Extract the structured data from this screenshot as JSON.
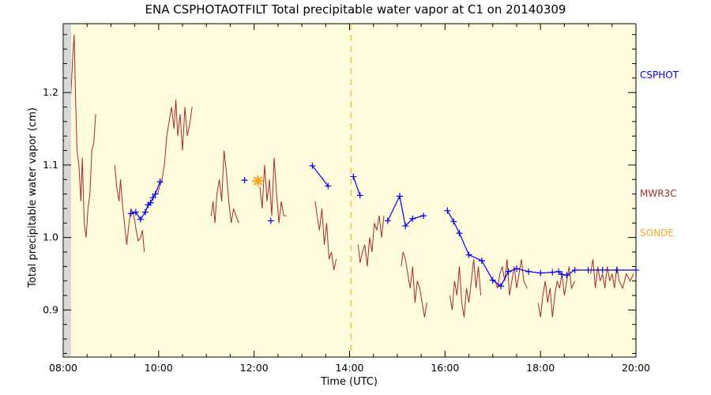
{
  "chart_data": {
    "type": "line",
    "title": "ENA CSPHOTAOTFILT Total precipitable water vapor at C1 on 20140309",
    "xlabel": "Time (UTC)",
    "ylabel": "Total precipitable water vapor (cm)",
    "xlim_hours": [
      8,
      20
    ],
    "ylim": [
      0.835,
      1.295
    ],
    "x_ticks": [
      {
        "value": 8,
        "label": "08:00"
      },
      {
        "value": 10,
        "label": "10:00"
      },
      {
        "value": 12,
        "label": "12:00"
      },
      {
        "value": 14,
        "label": "14:00"
      },
      {
        "value": 16,
        "label": "16:00"
      },
      {
        "value": 18,
        "label": "18:00"
      },
      {
        "value": 20,
        "label": "20:00"
      }
    ],
    "y_ticks": [
      {
        "value": 0.9,
        "label": "0.9"
      },
      {
        "value": 1.0,
        "label": "1.0"
      },
      {
        "value": 1.1,
        "label": "1.1"
      },
      {
        "value": 1.2,
        "label": "1.2"
      }
    ],
    "background_color": "#fdfbdc",
    "grid": false,
    "vertical_reference_line": {
      "x_hours": 14.03,
      "color": "#f5c242",
      "style": "dashed"
    },
    "legend_placement": "right",
    "series": [
      {
        "name": "CSPHOT",
        "color": "#0000ee",
        "marker": "plus",
        "segments": [
          [
            [
              9.42,
              1.033
            ],
            [
              9.52,
              1.035
            ],
            [
              9.62,
              1.025
            ],
            [
              9.72,
              1.035
            ],
            [
              9.78,
              1.045
            ],
            [
              9.83,
              1.048
            ],
            [
              9.88,
              1.055
            ],
            [
              9.93,
              1.06
            ],
            [
              10.03,
              1.077
            ]
          ],
          [
            [
              11.8,
              1.079
            ]
          ],
          [
            [
              12.35,
              1.023
            ]
          ],
          [
            [
              13.22,
              1.099
            ],
            [
              13.55,
              1.071
            ]
          ],
          [
            [
              14.08,
              1.084
            ],
            [
              14.22,
              1.058
            ]
          ],
          [
            [
              14.8,
              1.023
            ],
            [
              15.05,
              1.057
            ],
            [
              15.17,
              1.016
            ],
            [
              15.32,
              1.026
            ],
            [
              15.55,
              1.03
            ]
          ],
          [
            [
              16.05,
              1.037
            ],
            [
              16.18,
              1.022
            ],
            [
              16.3,
              1.006
            ],
            [
              16.5,
              0.976
            ],
            [
              16.77,
              0.968
            ],
            [
              17.0,
              0.941
            ],
            [
              17.17,
              0.933
            ],
            [
              17.33,
              0.953
            ],
            [
              17.5,
              0.957
            ],
            [
              17.75,
              0.953
            ],
            [
              18.0,
              0.951
            ],
            [
              18.25,
              0.952
            ],
            [
              18.38,
              0.953
            ],
            [
              18.45,
              0.949
            ],
            [
              18.55,
              0.948
            ],
            [
              18.72,
              0.955
            ],
            [
              19.0,
              0.955
            ],
            [
              19.3,
              0.955
            ],
            [
              19.6,
              0.955
            ],
            [
              20.0,
              0.955
            ]
          ]
        ]
      },
      {
        "name": "MWR3C",
        "color": "#a52a2a",
        "marker": "none",
        "segments": [
          [
            [
              8.0,
              1.13
            ],
            [
              8.04,
              1.14
            ],
            [
              8.08,
              1.17
            ],
            [
              8.12,
              1.15
            ],
            [
              8.17,
              1.21
            ],
            [
              8.2,
              1.25
            ],
            [
              8.23,
              1.28
            ],
            [
              8.26,
              1.19
            ],
            [
              8.29,
              1.12
            ],
            [
              8.33,
              1.1
            ],
            [
              8.37,
              1.05
            ],
            [
              8.4,
              1.11
            ],
            [
              8.44,
              1.02
            ],
            [
              8.48,
              1.0
            ],
            [
              8.52,
              1.04
            ],
            [
              8.56,
              1.06
            ],
            [
              8.6,
              1.12
            ],
            [
              8.64,
              1.13
            ],
            [
              8.68,
              1.17
            ]
          ],
          [
            [
              9.08,
              1.1
            ],
            [
              9.12,
              1.07
            ],
            [
              9.17,
              1.05
            ],
            [
              9.2,
              1.08
            ],
            [
              9.25,
              1.04
            ],
            [
              9.3,
              1.01
            ],
            [
              9.33,
              0.99
            ],
            [
              9.38,
              1.02
            ],
            [
              9.42,
              1.04
            ],
            [
              9.48,
              1.03
            ],
            [
              9.53,
              1.01
            ],
            [
              9.57,
              0.995
            ],
            [
              9.62,
              1.0
            ],
            [
              9.66,
              1.01
            ],
            [
              9.7,
              0.98
            ]
          ],
          [
            [
              9.98,
              1.06
            ],
            [
              10.02,
              1.07
            ],
            [
              10.07,
              1.08
            ],
            [
              10.12,
              1.1
            ],
            [
              10.17,
              1.14
            ],
            [
              10.22,
              1.16
            ],
            [
              10.27,
              1.18
            ],
            [
              10.32,
              1.15
            ],
            [
              10.36,
              1.19
            ],
            [
              10.4,
              1.14
            ],
            [
              10.45,
              1.17
            ],
            [
              10.5,
              1.12
            ],
            [
              10.55,
              1.18
            ],
            [
              10.6,
              1.14
            ],
            [
              10.66,
              1.16
            ],
            [
              10.7,
              1.18
            ]
          ],
          [
            [
              11.1,
              1.03
            ],
            [
              11.14,
              1.05
            ],
            [
              11.18,
              1.02
            ],
            [
              11.22,
              1.06
            ],
            [
              11.27,
              1.08
            ],
            [
              11.32,
              1.05
            ],
            [
              11.37,
              1.12
            ],
            [
              11.42,
              1.09
            ],
            [
              11.47,
              1.05
            ],
            [
              11.52,
              1.02
            ],
            [
              11.57,
              1.04
            ],
            [
              11.62,
              1.03
            ],
            [
              11.68,
              1.02
            ]
          ],
          [
            [
              12.12,
              1.07
            ],
            [
              12.17,
              1.04
            ],
            [
              12.22,
              1.1
            ],
            [
              12.27,
              1.05
            ],
            [
              12.32,
              1.08
            ],
            [
              12.37,
              1.03
            ],
            [
              12.42,
              1.11
            ],
            [
              12.47,
              1.06
            ],
            [
              12.52,
              1.02
            ],
            [
              12.57,
              1.05
            ],
            [
              12.62,
              1.03
            ],
            [
              12.68,
              1.03
            ]
          ],
          [
            [
              13.28,
              1.05
            ],
            [
              13.32,
              1.03
            ],
            [
              13.37,
              1.01
            ],
            [
              13.42,
              1.04
            ],
            [
              13.47,
              0.99
            ],
            [
              13.52,
              1.02
            ],
            [
              13.57,
              0.97
            ],
            [
              13.62,
              0.98
            ],
            [
              13.67,
              0.955
            ],
            [
              13.72,
              0.97
            ]
          ],
          [
            [
              14.18,
              0.99
            ],
            [
              14.22,
              0.965
            ],
            [
              14.27,
              0.98
            ],
            [
              14.32,
              0.99
            ],
            [
              14.37,
              0.96
            ],
            [
              14.42,
              1.0
            ],
            [
              14.47,
              0.98
            ],
            [
              14.52,
              1.02
            ],
            [
              14.57,
              1.01
            ],
            [
              14.62,
              1.03
            ],
            [
              14.67,
              1.0
            ],
            [
              14.72,
              1.03
            ]
          ],
          [
            [
              15.08,
              0.96
            ],
            [
              15.12,
              0.98
            ],
            [
              15.17,
              0.97
            ],
            [
              15.22,
              0.95
            ],
            [
              15.27,
              0.93
            ],
            [
              15.32,
              0.96
            ],
            [
              15.37,
              0.91
            ],
            [
              15.42,
              0.94
            ],
            [
              15.47,
              0.93
            ],
            [
              15.52,
              0.91
            ],
            [
              15.57,
              0.89
            ],
            [
              15.62,
              0.91
            ]
          ],
          [
            [
              16.1,
              0.92
            ],
            [
              16.15,
              0.9
            ],
            [
              16.2,
              0.94
            ],
            [
              16.25,
              0.92
            ],
            [
              16.3,
              0.96
            ],
            [
              16.35,
              0.91
            ],
            [
              16.4,
              0.89
            ],
            [
              16.45,
              0.93
            ],
            [
              16.5,
              0.91
            ],
            [
              16.55,
              0.94
            ],
            [
              16.6,
              0.97
            ],
            [
              16.65,
              0.93
            ],
            [
              16.7,
              0.96
            ],
            [
              16.75,
              0.92
            ]
          ],
          [
            [
              17.05,
              0.94
            ],
            [
              17.1,
              0.93
            ],
            [
              17.15,
              0.95
            ],
            [
              17.2,
              0.96
            ],
            [
              17.25,
              0.94
            ],
            [
              17.3,
              0.97
            ],
            [
              17.35,
              0.92
            ],
            [
              17.4,
              0.94
            ],
            [
              17.45,
              0.96
            ],
            [
              17.5,
              0.93
            ],
            [
              17.55,
              0.95
            ],
            [
              17.6,
              0.97
            ],
            [
              17.65,
              0.94
            ],
            [
              17.72,
              0.93
            ]
          ],
          [
            [
              17.95,
              0.91
            ],
            [
              18.0,
              0.89
            ],
            [
              18.05,
              0.92
            ],
            [
              18.1,
              0.94
            ],
            [
              18.15,
              0.91
            ],
            [
              18.2,
              0.93
            ],
            [
              18.25,
              0.89
            ],
            [
              18.3,
              0.92
            ],
            [
              18.35,
              0.94
            ],
            [
              18.4,
              0.93
            ],
            [
              18.45,
              0.95
            ],
            [
              18.5,
              0.92
            ],
            [
              18.55,
              0.94
            ],
            [
              18.6,
              0.96
            ],
            [
              18.65,
              0.93
            ],
            [
              18.72,
              0.94
            ]
          ],
          [
            [
              19.05,
              0.95
            ],
            [
              19.1,
              0.97
            ],
            [
              19.15,
              0.93
            ],
            [
              19.2,
              0.96
            ],
            [
              19.25,
              0.94
            ],
            [
              19.3,
              0.95
            ],
            [
              19.35,
              0.93
            ],
            [
              19.4,
              0.96
            ],
            [
              19.45,
              0.94
            ],
            [
              19.5,
              0.95
            ],
            [
              19.55,
              0.93
            ],
            [
              19.6,
              0.96
            ],
            [
              19.65,
              0.94
            ],
            [
              19.72,
              0.93
            ],
            [
              19.8,
              0.95
            ],
            [
              19.88,
              0.94
            ],
            [
              19.95,
              0.95
            ]
          ]
        ]
      },
      {
        "name": "SONDE",
        "color": "#f5a623",
        "marker": "asterisk",
        "segments": [
          [
            [
              12.08,
              1.078
            ]
          ]
        ]
      }
    ]
  }
}
